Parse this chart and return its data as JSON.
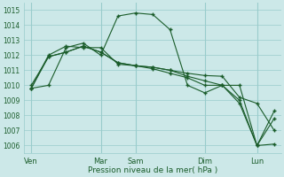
{
  "background_color": "#cce8e8",
  "grid_color": "#99cccc",
  "line_color": "#1a5c2a",
  "xlabel": "Pression niveau de la mer( hPa )",
  "ylim": [
    1005.5,
    1015.5
  ],
  "yticks": [
    1006,
    1007,
    1008,
    1009,
    1010,
    1011,
    1012,
    1013,
    1014,
    1015
  ],
  "x_tick_labels": [
    "Ven",
    "Mar",
    "Sam",
    "Dim",
    "Lun"
  ],
  "x_tick_positions": [
    0.0,
    0.286,
    0.429,
    0.714,
    0.929
  ],
  "xlim": [
    -0.03,
    1.03
  ],
  "series": [
    {
      "x": [
        0.0,
        0.071,
        0.143,
        0.214,
        0.286,
        0.357,
        0.429,
        0.5,
        0.571,
        0.643,
        0.714,
        0.786,
        0.857,
        0.929,
        1.0
      ],
      "y": [
        1009.8,
        1010.0,
        1012.5,
        1012.8,
        1012.0,
        1014.6,
        1014.8,
        1014.7,
        1013.7,
        1010.0,
        1009.5,
        1010.0,
        1010.0,
        1006.0,
        1008.3
      ]
    },
    {
      "x": [
        0.0,
        0.071,
        0.143,
        0.214,
        0.286,
        0.357,
        0.429,
        0.5,
        0.571,
        0.643,
        0.714,
        0.786,
        0.857,
        0.929,
        1.0
      ],
      "y": [
        1010.0,
        1011.9,
        1012.2,
        1012.6,
        1012.2,
        1011.5,
        1011.3,
        1011.2,
        1011.0,
        1010.8,
        1010.65,
        1010.6,
        1009.2,
        1008.8,
        1007.0
      ]
    },
    {
      "x": [
        0.0,
        0.071,
        0.143,
        0.214,
        0.286,
        0.357,
        0.429,
        0.5,
        0.571,
        0.643,
        0.714,
        0.786,
        0.857,
        0.929,
        1.0
      ],
      "y": [
        1009.8,
        1011.9,
        1012.2,
        1012.6,
        1012.2,
        1011.5,
        1011.3,
        1011.2,
        1011.0,
        1010.6,
        1010.3,
        1010.0,
        1009.0,
        1006.0,
        1006.1
      ]
    },
    {
      "x": [
        0.0,
        0.071,
        0.143,
        0.214,
        0.286,
        0.357,
        0.429,
        0.5,
        0.571,
        0.643,
        0.714,
        0.786,
        0.857,
        0.929,
        1.0
      ],
      "y": [
        1009.8,
        1012.0,
        1012.6,
        1012.5,
        1012.5,
        1011.4,
        1011.3,
        1011.1,
        1010.8,
        1010.5,
        1010.0,
        1010.0,
        1008.8,
        1006.0,
        1007.8
      ]
    }
  ]
}
